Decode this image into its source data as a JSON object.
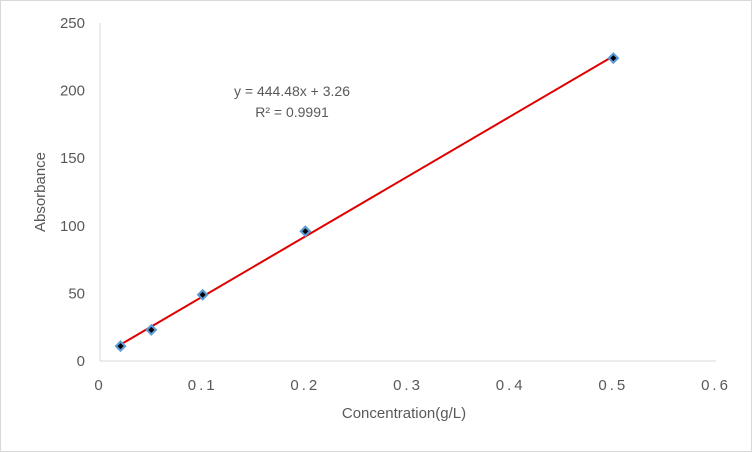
{
  "chart_data": {
    "type": "scatter",
    "title": "",
    "xlabel": "Concentration(g/L)",
    "ylabel": "Absorbance",
    "xlim": [
      0,
      0.6
    ],
    "ylim": [
      0,
      250
    ],
    "x_ticks": [
      "0",
      "0.1",
      "0.2",
      "0.3",
      "0.4",
      "0.5",
      "0.6"
    ],
    "y_ticks": [
      "0",
      "50",
      "100",
      "150",
      "200",
      "250"
    ],
    "grid": false,
    "series": [
      {
        "x": [
          0.02,
          0.05,
          0.1,
          0.2,
          0.5
        ],
        "y": [
          11,
          23,
          49,
          96,
          224
        ],
        "marker_color": "#5b9bd5",
        "marker_inner_color": "#000000"
      }
    ],
    "trendline": {
      "type": "linear",
      "slope": 444.48,
      "intercept": 3.26,
      "x_range": [
        0.02,
        0.5
      ],
      "color": "#e00000",
      "equation_label": "y = 444.48x + 3.26",
      "r2_label": "R² = 0.9991"
    }
  }
}
